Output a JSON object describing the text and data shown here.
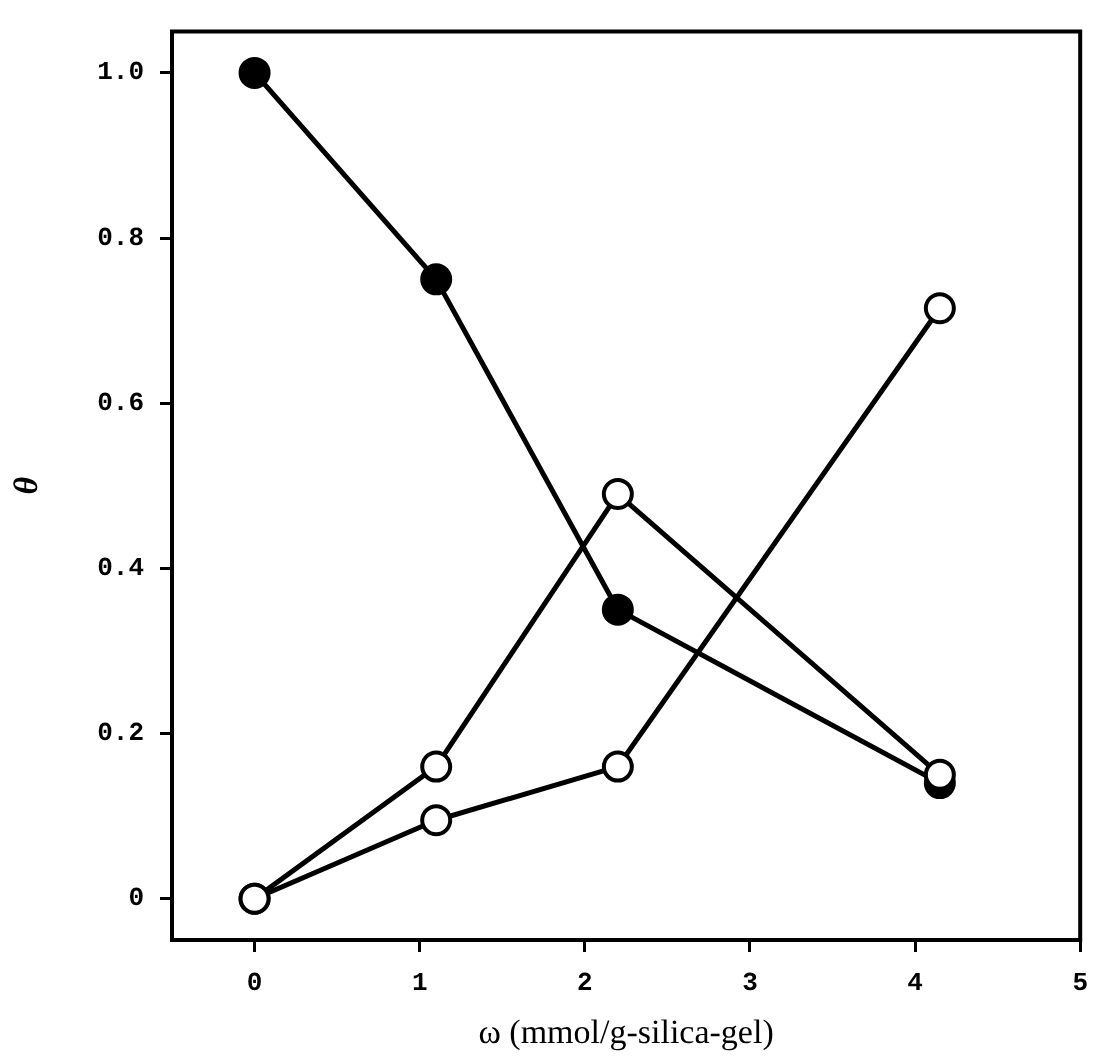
{
  "chart_data": {
    "type": "line",
    "xlabel": "ω (mmol/g-silica-gel)",
    "ylabel": "θ",
    "x": [
      0,
      1.1,
      2.2,
      4.15
    ],
    "series": [
      {
        "color": "#000000",
        "values": [
          1.0,
          0.75,
          0.35,
          0.14
        ]
      },
      {
        "color": "#ffffff",
        "values": [
          0,
          0.16,
          0.49,
          0.15
        ]
      },
      {
        "color": "#ffffff",
        "values": [
          0,
          0.095,
          0.16,
          0.715
        ]
      }
    ],
    "xlim": [
      -0.5,
      5
    ],
    "xticks": [
      0,
      1,
      2,
      3,
      4,
      5
    ],
    "ylim": [
      -0.05,
      1.05
    ],
    "yticks": [
      {
        "value": 0,
        "label": "0"
      },
      {
        "value": 0.2,
        "label": "0.2"
      },
      {
        "value": 0.4,
        "label": "0.4"
      },
      {
        "value": 0.6,
        "label": "0.6"
      },
      {
        "value": 0.8,
        "label": "0.8"
      },
      {
        "value": 1.0,
        "label": "1.0"
      }
    ],
    "grid": false,
    "marker": "circle",
    "line_style": "solid"
  }
}
